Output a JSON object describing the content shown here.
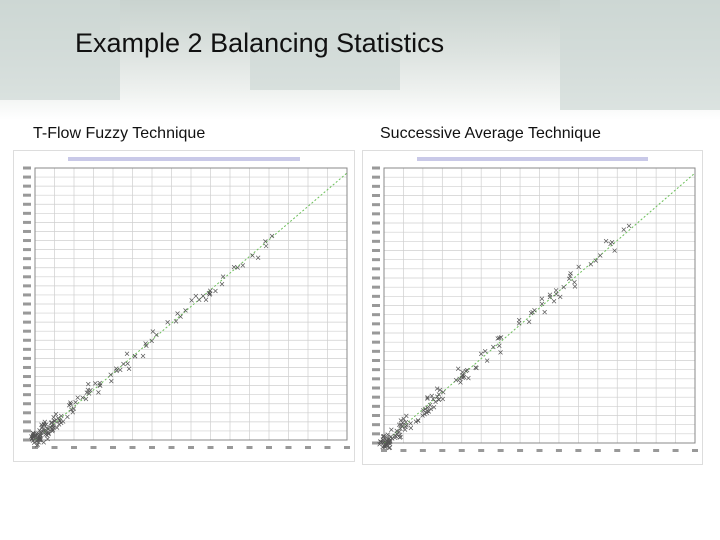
{
  "header": {
    "title": "Example 2 Balancing Statistics"
  },
  "panels": [
    {
      "caption": "T-Flow Fuzzy Technique"
    },
    {
      "caption": "Successive Average Technique"
    }
  ]
}
